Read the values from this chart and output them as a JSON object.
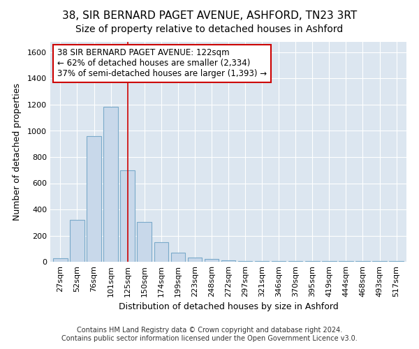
{
  "title_line1": "38, SIR BERNARD PAGET AVENUE, ASHFORD, TN23 3RT",
  "title_line2": "Size of property relative to detached houses in Ashford",
  "xlabel": "Distribution of detached houses by size in Ashford",
  "ylabel": "Number of detached properties",
  "bar_color": "#c8d8ea",
  "bar_edge_color": "#7aaaca",
  "categories": [
    "27sqm",
    "52sqm",
    "76sqm",
    "101sqm",
    "125sqm",
    "150sqm",
    "174sqm",
    "199sqm",
    "223sqm",
    "248sqm",
    "272sqm",
    "297sqm",
    "321sqm",
    "346sqm",
    "370sqm",
    "395sqm",
    "419sqm",
    "444sqm",
    "468sqm",
    "493sqm",
    "517sqm"
  ],
  "values": [
    28,
    320,
    960,
    1185,
    700,
    305,
    150,
    68,
    30,
    22,
    10,
    8,
    5,
    5,
    5,
    5,
    5,
    5,
    5,
    5,
    8
  ],
  "ylim": [
    0,
    1680
  ],
  "yticks": [
    0,
    200,
    400,
    600,
    800,
    1000,
    1200,
    1400,
    1600
  ],
  "property_bin_index": 4,
  "annotation_line1": "38 SIR BERNARD PAGET AVENUE: 122sqm",
  "annotation_line2": "← 62% of detached houses are smaller (2,334)",
  "annotation_line3": "37% of semi-detached houses are larger (1,393) →",
  "ref_line_color": "#cc0000",
  "annotation_box_facecolor": "#ffffff",
  "annotation_box_edgecolor": "#cc0000",
  "footer_line1": "Contains HM Land Registry data © Crown copyright and database right 2024.",
  "footer_line2": "Contains public sector information licensed under the Open Government Licence v3.0.",
  "fig_facecolor": "#ffffff",
  "plot_facecolor": "#dce6f0",
  "grid_color": "#ffffff",
  "title1_fontsize": 11,
  "title2_fontsize": 10,
  "ylabel_fontsize": 9,
  "xlabel_fontsize": 9,
  "tick_fontsize": 8,
  "annotation_fontsize": 8.5,
  "footer_fontsize": 7
}
